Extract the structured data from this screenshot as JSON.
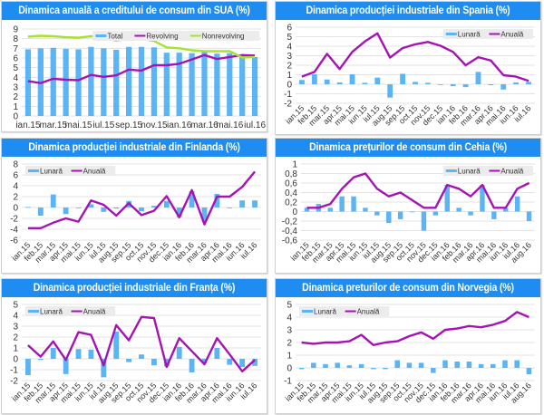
{
  "colors": {
    "bar": "#5bb4f5",
    "anual": "#a514b3",
    "revolving": "#a514b3",
    "nonrevolving": "#a6e22e",
    "title_bg": "#1e8cf0",
    "grid": "#e3e3e3"
  },
  "chart_data": [
    {
      "id": "sua",
      "type": "bar+line",
      "title": "Dinamica anuală a creditului de consum din SUA (%)",
      "categories": [
        "ian.15",
        "feb.15",
        "mar.15",
        "apr.15",
        "mai.15",
        "iun.15",
        "iul.15",
        "aug.15",
        "sep.15",
        "oct.15",
        "nov.15",
        "dec.15",
        "ian.16",
        "feb.16",
        "mar.16",
        "apr.16",
        "mai.16",
        "iun.16",
        "iul.16"
      ],
      "tick_labels": [
        "ian.15",
        "mar.15",
        "mai.15",
        "iul.15",
        "sep.15",
        "nov.15",
        "ian.16",
        "mar.16",
        "mai.16",
        "iul.16"
      ],
      "ylim": [
        0,
        9
      ],
      "yticks": [
        0,
        1,
        2,
        3,
        4,
        5,
        6,
        7,
        8,
        9
      ],
      "legend": "top-right",
      "series": [
        {
          "name": "Total",
          "kind": "bar",
          "values": [
            6.9,
            7.0,
            7.05,
            6.95,
            6.9,
            7.15,
            7.0,
            6.85,
            7.15,
            7.15,
            7.1,
            6.55,
            6.55,
            6.5,
            6.6,
            6.45,
            6.5,
            6.2,
            6.1
          ]
        },
        {
          "name": "Revolving",
          "kind": "line",
          "values": [
            3.6,
            3.4,
            3.85,
            3.75,
            3.7,
            4.25,
            4.05,
            4.2,
            4.8,
            4.7,
            5.25,
            5.25,
            5.4,
            5.85,
            6.3,
            5.9,
            6.1,
            6.3,
            6.25
          ]
        },
        {
          "name": "Nonrevolving",
          "kind": "line",
          "values": [
            8.2,
            8.3,
            8.25,
            8.15,
            8.1,
            8.25,
            8.1,
            7.8,
            8.0,
            8.0,
            7.75,
            7.1,
            7.0,
            6.8,
            6.7,
            6.7,
            6.7,
            6.05,
            6.1
          ]
        }
      ]
    },
    {
      "id": "spania",
      "type": "bar+line",
      "title": "Dinamica producției industriale din Spania (%)",
      "categories": [
        "ian.15",
        "feb.15",
        "mar.15",
        "apr.15",
        "mai.15",
        "iun.15",
        "iul.15",
        "aug.15",
        "sep.15",
        "oct.15",
        "nov.15",
        "dec.15",
        "ian.16",
        "feb.16",
        "mar.16",
        "apr.16",
        "mai.16",
        "iun.16",
        "iul.16"
      ],
      "ylim": [
        -2,
        6
      ],
      "yticks": [
        -2,
        -1,
        0,
        1,
        2,
        3,
        4,
        5,
        6
      ],
      "legend": "top-right",
      "series": [
        {
          "name": "Lunară",
          "kind": "bar",
          "values": [
            0.45,
            1.05,
            0.5,
            0.2,
            1.05,
            0.15,
            0.7,
            -1.4,
            1.1,
            0.25,
            0.15,
            0.0,
            -0.2,
            -0.3,
            1.3,
            -0.1,
            -0.55,
            0.2,
            0.25
          ]
        },
        {
          "name": "Anuală",
          "kind": "line",
          "values": [
            0.8,
            1.3,
            3.2,
            1.6,
            3.4,
            4.5,
            5.35,
            2.8,
            3.8,
            4.2,
            4.45,
            4.05,
            3.4,
            2.0,
            2.85,
            2.5,
            0.95,
            0.8,
            0.35
          ]
        }
      ]
    },
    {
      "id": "finlanda",
      "type": "bar+line",
      "title": "Dinamica producției industriale din Finlanda (%)",
      "categories": [
        "ian.15",
        "feb.15",
        "mar.15",
        "apr.15",
        "mai.15",
        "iun.15",
        "iul.15",
        "aug.15",
        "sep.15",
        "oct.15",
        "nov.15",
        "dec.15",
        "ian.16",
        "feb.16",
        "mar.16",
        "apr.16",
        "mai.16",
        "iun.16",
        "iul.16"
      ],
      "ylim": [
        -6,
        8
      ],
      "yticks": [
        -6,
        -4,
        -2,
        0,
        2,
        4,
        6,
        8
      ],
      "legend": "top-left",
      "series": [
        {
          "name": "Lunară",
          "kind": "bar",
          "values": [
            0.1,
            -1.5,
            2.4,
            -1.2,
            0.0,
            0.6,
            -0.8,
            -0.2,
            1.2,
            -0.7,
            0.3,
            1.2,
            -1.8,
            3.0,
            -2.6,
            2.5,
            -0.1,
            1.3,
            1.3
          ]
        },
        {
          "name": "Anuală",
          "kind": "line",
          "values": [
            -3.8,
            -3.8,
            -2.8,
            -2.0,
            -2.6,
            1.3,
            0.5,
            -1.5,
            0.8,
            -1.4,
            -0.6,
            2.1,
            -1.8,
            3.2,
            -3.1,
            2.0,
            2.0,
            3.8,
            6.6
          ]
        }
      ]
    },
    {
      "id": "cehia",
      "type": "bar+line",
      "title": "Dinamica prețurilor de consum din Cehia (%)",
      "categories": [
        "ian.15",
        "feb.15",
        "mar.15",
        "apr.15",
        "mai.15",
        "iun.15",
        "iul.15",
        "aug.15",
        "sep.15",
        "oct.15",
        "nov.15",
        "dec.15",
        "ian.16",
        "feb.16",
        "mar.16",
        "apr.16",
        "mai.16",
        "iun.16",
        "iul.16",
        "aug.16"
      ],
      "ylim": [
        -0.6,
        1
      ],
      "yticks": [
        "-0,6",
        "-0,4",
        "-0,2",
        "0",
        "0,2",
        "0,4",
        "0,6",
        "0,8",
        "1"
      ],
      "legend": "top-right",
      "series": [
        {
          "name": "Lunară",
          "kind": "bar",
          "values": [
            0.08,
            0.16,
            0.08,
            0.32,
            0.32,
            0.08,
            -0.08,
            -0.24,
            -0.16,
            0.0,
            -0.4,
            -0.08,
            0.56,
            0.08,
            -0.08,
            0.56,
            -0.16,
            0.08,
            0.32,
            -0.2
          ]
        },
        {
          "name": "Anuală",
          "kind": "line",
          "values": [
            0.08,
            0.08,
            0.16,
            0.48,
            0.72,
            0.8,
            0.48,
            0.32,
            0.4,
            0.24,
            0.08,
            0.08,
            0.56,
            0.48,
            0.32,
            0.56,
            0.08,
            0.08,
            0.48,
            0.6
          ]
        }
      ]
    },
    {
      "id": "franta",
      "type": "bar+line",
      "title": "Dinamica producției industriale din Franța (%)",
      "categories": [
        "ian.15",
        "feb.15",
        "mar.15",
        "apr.15",
        "mai.15",
        "iun.15",
        "iul.15",
        "aug.15",
        "sep.15",
        "oct.15",
        "nov.15",
        "dec.15",
        "ian.16",
        "feb.16",
        "mar.16",
        "apr.16",
        "mai.16",
        "iun.16",
        "iul.16"
      ],
      "ylim": [
        -2,
        5
      ],
      "yticks": [
        -2,
        -1,
        0,
        1,
        2,
        3,
        4,
        5
      ],
      "legend": "top-left",
      "series": [
        {
          "name": "Lunară",
          "kind": "bar",
          "values": [
            -1.5,
            -0.1,
            1.0,
            -1.4,
            0.9,
            0.85,
            -1.7,
            2.5,
            -0.3,
            0.4,
            -0.6,
            -0.7,
            1.1,
            -1.25,
            -0.4,
            1.0,
            -0.55,
            -0.75,
            -0.65
          ]
        },
        {
          "name": "Anuală",
          "kind": "line",
          "values": [
            1.25,
            0.2,
            1.6,
            -0.1,
            2.45,
            2.2,
            -0.6,
            3.1,
            1.7,
            3.85,
            3.75,
            -0.75,
            1.9,
            0.7,
            -0.5,
            1.9,
            0.4,
            -1.15,
            -0.1
          ]
        }
      ]
    },
    {
      "id": "norvegia",
      "type": "bar+line",
      "title": "Dinamica preturilor de consum din Norvegia (%)",
      "categories": [
        "ian.15",
        "feb.15",
        "mar.15",
        "apr.15",
        "mai.15",
        "iun.15",
        "iul.15",
        "aug.15",
        "sep.15",
        "oct.15",
        "nov.15",
        "dec.15",
        "ian.16",
        "feb.16",
        "mar.16",
        "apr.16",
        "mai.16",
        "iun.16",
        "iul.16",
        "aug.16"
      ],
      "ylim": [
        -1,
        5
      ],
      "yticks": [
        -1,
        0,
        1,
        2,
        3,
        4,
        5
      ],
      "legend": "top-left",
      "series": [
        {
          "name": "Lunară",
          "kind": "bar",
          "values": [
            -0.1,
            0.4,
            0.3,
            0.4,
            0.2,
            0.3,
            -0.1,
            -0.1,
            0.6,
            0.4,
            0.4,
            -0.4,
            0.6,
            0.5,
            0.5,
            0.3,
            0.3,
            0.6,
            0.6,
            -0.5
          ]
        },
        {
          "name": "Anuală",
          "kind": "line",
          "values": [
            2.0,
            1.9,
            2.0,
            2.0,
            2.1,
            2.6,
            1.8,
            2.0,
            2.1,
            2.5,
            2.8,
            2.3,
            3.0,
            3.1,
            3.3,
            3.2,
            3.4,
            3.7,
            4.4,
            4.0
          ]
        }
      ]
    }
  ]
}
